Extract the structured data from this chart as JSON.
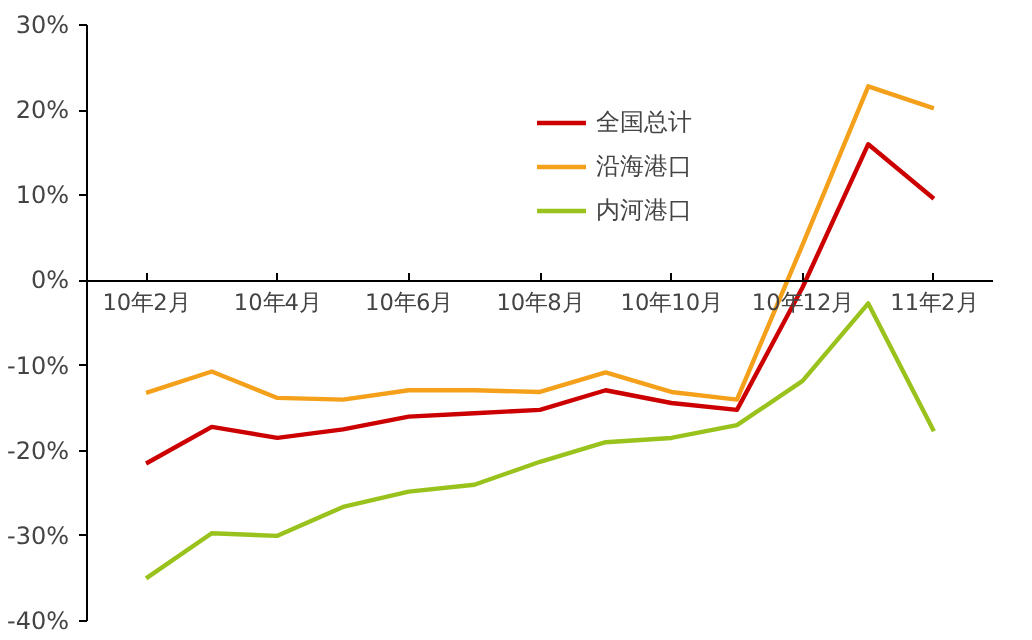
{
  "chart_data": {
    "type": "line",
    "categories": [
      "10年2月",
      null,
      "10年4月",
      null,
      "10年6月",
      null,
      "10年8月",
      null,
      "10年10月",
      null,
      "10年12月",
      null,
      "11年2月"
    ],
    "series": [
      {
        "name": "全国总计",
        "color": "#cc0000",
        "values": [
          -21.5,
          -17.2,
          -18.5,
          -17.5,
          -16.0,
          -15.6,
          -15.2,
          -12.9,
          -14.4,
          -15.2,
          -0.8,
          16.0,
          9.6
        ]
      },
      {
        "name": "沿海港口",
        "color": "#f5a01a",
        "values": [
          -13.2,
          -10.7,
          -13.8,
          -14.0,
          -12.9,
          -12.9,
          -13.1,
          -10.8,
          -13.1,
          -14.0,
          4.2,
          22.8,
          20.2
        ]
      },
      {
        "name": "内河港口",
        "color": "#99c31c",
        "values": [
          -35.0,
          -29.7,
          -30.0,
          -26.6,
          -24.8,
          -24.0,
          -21.3,
          -19.0,
          -18.5,
          -17.0,
          -11.8,
          -2.7,
          -17.7
        ]
      }
    ],
    "ylim": [
      -40,
      30
    ],
    "yticks": [
      {
        "value": -40,
        "label": "-40%"
      },
      {
        "value": -30,
        "label": "-30%"
      },
      {
        "value": -20,
        "label": "-20%"
      },
      {
        "value": -10,
        "label": "-10%"
      },
      {
        "value": 0,
        "label": "0%"
      },
      {
        "value": 10,
        "label": "10%"
      },
      {
        "value": 20,
        "label": "20%"
      },
      {
        "value": 30,
        "label": "30%"
      }
    ],
    "grid": false,
    "legend": "top right",
    "marker": "none",
    "line_style": "solid"
  }
}
